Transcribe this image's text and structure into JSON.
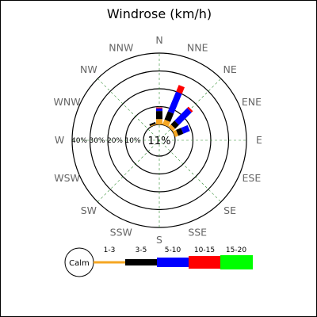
{
  "chart_data": {
    "type": "windrose",
    "title": "Windrose (km/h)",
    "directions": [
      "N",
      "NNE",
      "NE",
      "ENE",
      "E",
      "ESE",
      "SE",
      "SSE",
      "S",
      "SSW",
      "SW",
      "WSW",
      "W",
      "WNW",
      "NW",
      "NNW"
    ],
    "ring_labels": [
      "10%",
      "20%",
      "30%",
      "40%"
    ],
    "calm_label": "11%",
    "legend_calm": "Calm",
    "bins": [
      {
        "name": "1-3",
        "color": "#f5a623"
      },
      {
        "name": "3-5",
        "color": "#000000"
      },
      {
        "name": "5-10",
        "color": "#0000ff"
      },
      {
        "name": "10-15",
        "color": "#ff0000"
      },
      {
        "name": "15-20",
        "color": "#00ff00"
      }
    ],
    "sectors": {
      "N": [
        3,
        4.5,
        1.5,
        0.5,
        0
      ],
      "NNE": [
        3,
        5,
        12,
        4,
        0
      ],
      "NE": [
        2,
        3,
        10,
        1,
        0
      ],
      "ENE": [
        2,
        3,
        4,
        0,
        0
      ],
      "E": [
        0,
        0,
        0,
        0,
        0
      ],
      "ESE": [
        0,
        0,
        0,
        0,
        0
      ],
      "SE": [
        0,
        0,
        0,
        0,
        0
      ],
      "SSE": [
        0,
        0,
        0,
        0,
        0
      ],
      "S": [
        0,
        0,
        0,
        0,
        0
      ],
      "SSW": [
        0,
        0,
        0,
        0,
        0
      ],
      "SW": [
        0,
        0,
        0,
        0,
        0
      ],
      "WSW": [
        0,
        0,
        0,
        0,
        0
      ],
      "W": [
        0,
        0,
        0,
        0,
        0
      ],
      "WNW": [
        0,
        0,
        0,
        0,
        0
      ],
      "NW": [
        0,
        0,
        0,
        0,
        0
      ],
      "NNW": [
        0.5,
        1,
        0,
        0,
        0
      ]
    },
    "rmax": 40,
    "grid": true
  }
}
